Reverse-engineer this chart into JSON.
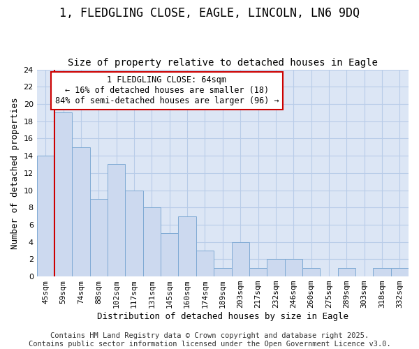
{
  "title": "1, FLEDGLING CLOSE, EAGLE, LINCOLN, LN6 9DQ",
  "subtitle": "Size of property relative to detached houses in Eagle",
  "xlabel": "Distribution of detached houses by size in Eagle",
  "ylabel": "Number of detached properties",
  "categories": [
    "45sqm",
    "59sqm",
    "74sqm",
    "88sqm",
    "102sqm",
    "117sqm",
    "131sqm",
    "145sqm",
    "160sqm",
    "174sqm",
    "189sqm",
    "203sqm",
    "217sqm",
    "232sqm",
    "246sqm",
    "260sqm",
    "275sqm",
    "289sqm",
    "303sqm",
    "318sqm",
    "332sqm"
  ],
  "values": [
    14,
    19,
    15,
    9,
    13,
    10,
    8,
    5,
    7,
    3,
    1,
    4,
    1,
    2,
    2,
    1,
    0,
    1,
    0,
    1,
    1
  ],
  "bar_color": "#ccd9ef",
  "bar_edge_color": "#7faad4",
  "red_line_x": 0.5,
  "ylim": [
    0,
    24
  ],
  "yticks": [
    0,
    2,
    4,
    6,
    8,
    10,
    12,
    14,
    16,
    18,
    20,
    22,
    24
  ],
  "annotation_text": "1 FLEDGLING CLOSE: 64sqm\n← 16% of detached houses are smaller (18)\n84% of semi-detached houses are larger (96) →",
  "annotation_box_color": "#ffffff",
  "annotation_box_edge_color": "#cc0000",
  "plot_bg_color": "#dce6f5",
  "fig_bg_color": "#ffffff",
  "footer_text": "Contains HM Land Registry data © Crown copyright and database right 2025.\nContains public sector information licensed under the Open Government Licence v3.0.",
  "title_fontsize": 12,
  "subtitle_fontsize": 10,
  "axis_label_fontsize": 9,
  "tick_fontsize": 8,
  "annotation_fontsize": 8.5,
  "footer_fontsize": 7.5,
  "grid_color": "#b8cce8"
}
